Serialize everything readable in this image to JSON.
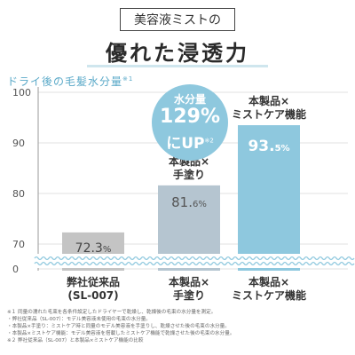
{
  "header": {
    "badge": "美容液ミストの",
    "headline": "優れた浸透力"
  },
  "chart_data": {
    "type": "bar",
    "ylabel": "ドライ後の毛髪水分量",
    "ylabel_note": "※1",
    "yticks": [
      "100",
      "90",
      "80",
      "70",
      "0"
    ],
    "ylim": [
      70,
      100
    ],
    "axis_break": true,
    "categories": [
      "弊社従来品(SL-007)",
      "本製品×手塗り",
      "本製品×ミストケア機能"
    ],
    "values": [
      72.3,
      81.6,
      93.5
    ],
    "value_labels": [
      {
        "num": "72.3",
        "unit": "%"
      },
      {
        "num": "81.",
        "tail": "6",
        "unit": "%"
      },
      {
        "num": "93.",
        "tail": "5",
        "unit": "%"
      }
    ],
    "x_labels": [
      [
        "弊社従来品",
        "(SL-007)"
      ],
      [
        "本製品×",
        "手塗り"
      ],
      [
        "本製品×",
        "ミストケア機能"
      ]
    ],
    "bar_top_labels": [
      [],
      [
        "本製品×",
        "手塗り"
      ],
      [
        "本製品×",
        "ミストケア機能"
      ]
    ],
    "colors": [
      "#c4c4c4",
      "#b5c5d0",
      "#8ec8de"
    ],
    "callout": {
      "line1": "水分量",
      "line2": "129%",
      "line3": "にUP",
      "note": "※2"
    }
  },
  "notes": [
    "※１ 同量の濡れた毛束を各条件設定したドライヤーで乾燥し、乾燥後の毛束の水分量を測定。",
    "・弊社従来品（SL-007）：モデル美容液未使用の毛束の水分量。",
    "・本製品×手塗り：ミストケア時と同量のモデル美容液を手塗りし、乾燥させた後の毛束の水分量。",
    "・本製品×ミストケア機能：モデル美容液を搭載したミストケア機能で乾燥させた後の毛束の水分量。",
    "※２ 弊社従来品（SL-007）と本製品×ミストケア機能の比較"
  ]
}
